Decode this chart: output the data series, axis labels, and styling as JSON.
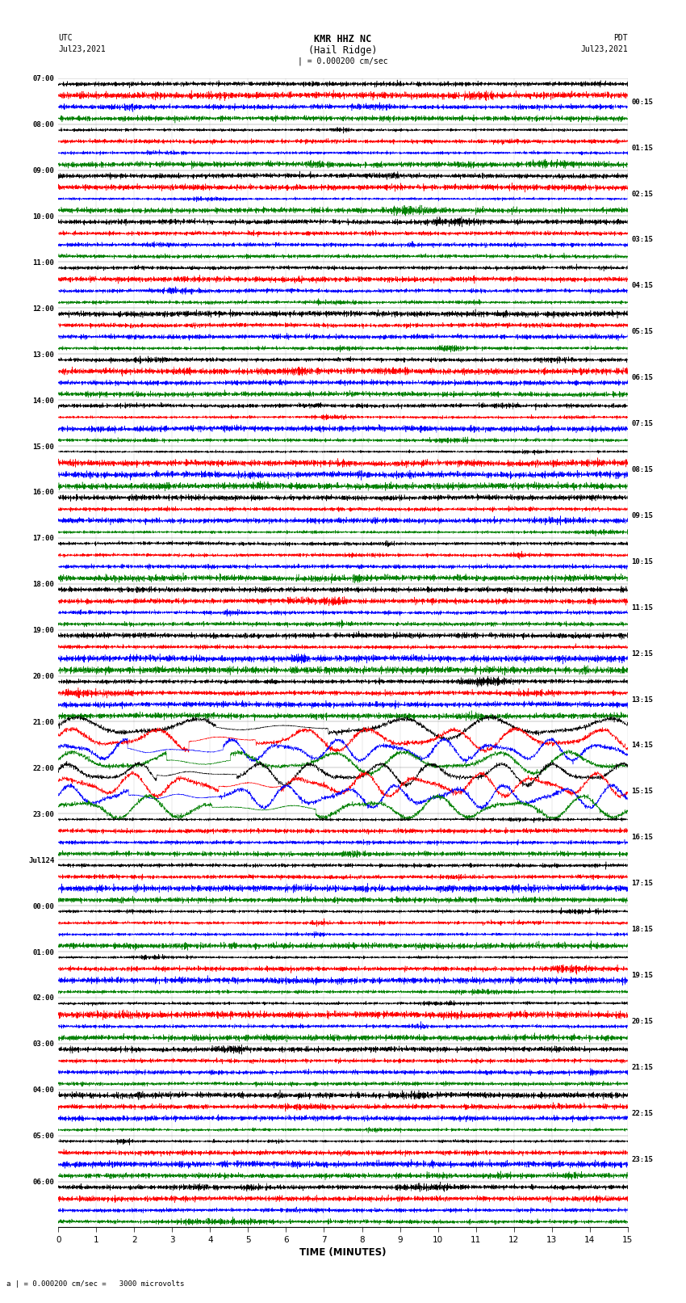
{
  "title_line1": "KMR HHZ NC",
  "title_line2": "(Hail Ridge)",
  "scale_label": "| = 0.000200 cm/sec",
  "bottom_label": "a | = 0.000200 cm/sec =   3000 microvolts",
  "xlabel": "TIME (MINUTES)",
  "left_header": "UTC",
  "left_date": "Jul23,2021",
  "right_header": "PDT",
  "right_date": "Jul23,2021",
  "left_times": [
    "07:00",
    "08:00",
    "09:00",
    "10:00",
    "11:00",
    "12:00",
    "13:00",
    "14:00",
    "15:00",
    "16:00",
    "17:00",
    "18:00",
    "19:00",
    "20:00",
    "21:00",
    "22:00",
    "23:00",
    "Jul124",
    "00:00",
    "01:00",
    "02:00",
    "03:00",
    "04:00",
    "05:00",
    "06:00"
  ],
  "right_times": [
    "00:15",
    "01:15",
    "02:15",
    "03:15",
    "04:15",
    "05:15",
    "06:15",
    "07:15",
    "08:15",
    "09:15",
    "10:15",
    "11:15",
    "12:15",
    "13:15",
    "14:15",
    "15:15",
    "16:15",
    "17:15",
    "18:15",
    "19:15",
    "20:15",
    "21:15",
    "22:15",
    "23:15"
  ],
  "n_rows": 25,
  "traces_per_row": 4,
  "colors": [
    "black",
    "red",
    "blue",
    "green"
  ],
  "bg_color": "white",
  "fig_width": 8.5,
  "fig_height": 16.13,
  "dpi": 100,
  "x_ticks": [
    0,
    1,
    2,
    3,
    4,
    5,
    6,
    7,
    8,
    9,
    10,
    11,
    12,
    13,
    14,
    15
  ],
  "x_lim": [
    0,
    15
  ],
  "trace_amplitude": 0.38,
  "n_points": 3000,
  "large_osc_rows": [
    14,
    15
  ],
  "large_osc_amp": 1.2,
  "horizontal_lines": true
}
